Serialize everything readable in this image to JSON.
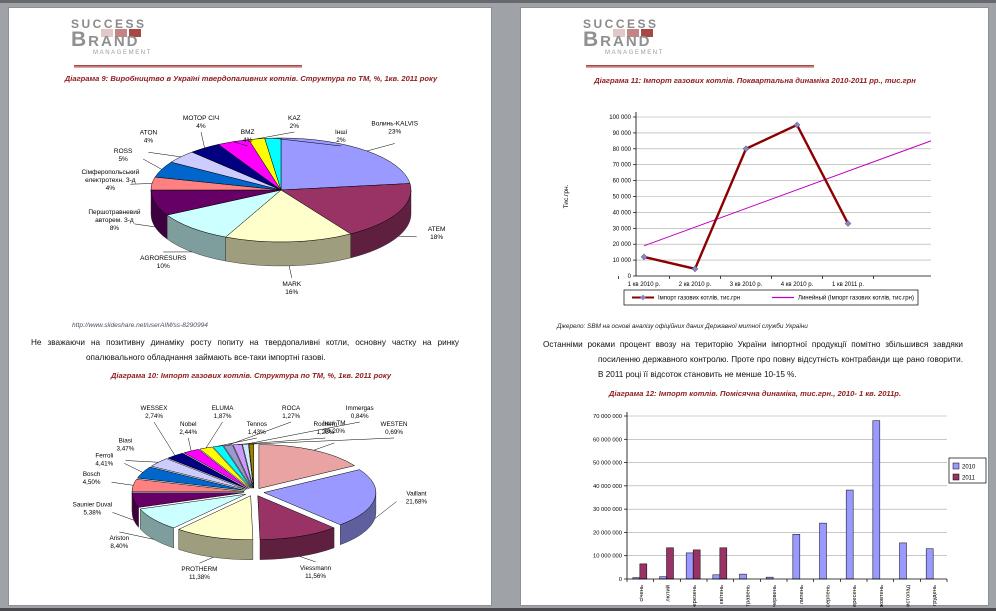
{
  "logo": {
    "success": "SUCCESS",
    "brand_initial": "B",
    "brand_rest": "RAND",
    "management": "MANAGEMENT"
  },
  "accent_color": "#8f1f22",
  "pages": {
    "left": {
      "title1": {
        "label": "Діаграма 9:",
        "rest": "Виробництво в Україні твердопаливних котлів. Структура по ТМ, %, 1кв. 2011 року"
      },
      "link": "http://www.slideshare.net/userAIM/ss-8290994",
      "paragraph": "Не зважаючи на позитивну динаміку росту попиту на твердопаливні котли, основну частку на ринку опалювального обладнання займають все-таки імпортні газові.",
      "title2": {
        "label": "Діаграма 10:",
        "rest": "Імпорт газових котлів. Структура по ТМ, %, 1кв. 2011 року"
      }
    },
    "right": {
      "title1": {
        "label": "Діаграма 11:",
        "rest": "Імпорт газових котлів. Поквартальна динаміка 2010-2011 рр., тис.грн"
      },
      "source": "Джерело: SBM на основі аналізу офіційних даних Державної митної служби України",
      "paragraph": "Останніми роками процент ввозу на територію України імпортної продукції помітно збільшився завдяки посиленню державного контролю. Проте про повну відсутність контрабанди ще рано говорити. В 2011 році її відсоток становить не менше 10-15 %.",
      "title2": {
        "label": "Діаграма 12:",
        "rest": "Імпорт котлів. Помісячна динаміка, тис.грн., 2010- 1 кв. 2011р."
      }
    }
  },
  "chart_data": [
    {
      "id": "pie-solid-fuel",
      "type": "pie",
      "title": "Виробництво в Україні твердопаливних котлів. Структура по ТМ, %, 1кв. 2011 року",
      "categories": [
        "Волинь-KALVIS",
        "ATEM",
        "MARK",
        "AGRORESURS",
        "Першотравневий авторем. З-д",
        "Сімферопольський електротехн. З-д",
        "ROSS",
        "ATON",
        "МОТОР СІЧ",
        "BMZ",
        "KAZ",
        "Інші"
      ],
      "values": [
        23,
        18,
        16,
        10,
        8,
        4,
        5,
        4,
        4,
        4,
        2,
        2
      ],
      "labels": [
        "23%",
        "18%",
        "16%",
        "10%",
        "8%",
        "4%",
        "5%",
        "4%",
        "4%",
        "4%",
        "2%",
        "2%"
      ],
      "colors": [
        "#9999FF",
        "#993366",
        "#FFFFCC",
        "#CCFFFF",
        "#660066",
        "#FF8080",
        "#0066CC",
        "#CCCCFF",
        "#000080",
        "#FF00FF",
        "#FFFF00",
        "#00FFFF"
      ],
      "legend_position": "none"
    },
    {
      "id": "pie-gas-import",
      "type": "pie",
      "title": "Імпорт газових котлів. Структура по ТМ, %, 1кв. 2011 року",
      "categories": [
        "Інші ТМ",
        "Vaillant",
        "Viessmann",
        "PROTHERM",
        "Ariston",
        "Saunier Duval",
        "Bosch",
        "Ferroli",
        "Biasi",
        "WESSEX",
        "Nobel",
        "ELUMA",
        "Tennos",
        "ROCA",
        "Rocterm",
        "Immergas",
        "WESTEN"
      ],
      "values": [
        16.2,
        21.68,
        11.56,
        11.38,
        8.4,
        5.38,
        4.5,
        4.41,
        3.47,
        2.74,
        2.44,
        1.87,
        1.43,
        1.27,
        1.25,
        0.84,
        0.69
      ],
      "labels": [
        "16,20%",
        "21,68%",
        "11,56%",
        "11,38%",
        "8,40%",
        "5,38%",
        "4,50%",
        "4,41%",
        "3,47%",
        "2,74%",
        "2,44%",
        "1,87%",
        "1,43%",
        "1,27%",
        "1,25%",
        "0,84%",
        "0,69%"
      ],
      "colors": [
        "#E9A3A3",
        "#9999FF",
        "#993366",
        "#FFFFCC",
        "#CCFFFF",
        "#660066",
        "#FF8080",
        "#0066CC",
        "#CCCCFF",
        "#000080",
        "#FF00FF",
        "#FFFF00",
        "#00FFFF",
        "#9999CC",
        "#CC99FF",
        "#CCECFF",
        "#A08000"
      ],
      "legend_position": "none"
    },
    {
      "id": "line-quarterly",
      "type": "line",
      "title": "Імпорт газових котлів. Поквартальна динаміка 2010-2011 рр., тис.грн",
      "categories": [
        "1 кв 2010 р.",
        "2 кв 2010 р.",
        "3 кв 2010 р.",
        "4 кв 2010 р.",
        "1 кв 2011 р."
      ],
      "series": [
        {
          "name": "Імпорт газових котлів, тис.грн",
          "values": [
            12000,
            4500,
            80000,
            95000,
            33000
          ],
          "color": "#8B0000"
        },
        {
          "name": "Линейный (Імпорт газових котлів, тис.грн)",
          "trend": [
            19000,
            85000
          ],
          "color": "#C000C0"
        }
      ],
      "ylabel": "Тис.грн.",
      "ylim": [
        0,
        100000
      ],
      "ytick": 10000,
      "grid": true,
      "legend_position": "bottom"
    },
    {
      "id": "bar-monthly",
      "type": "bar",
      "title": "Імпорт котлів. Помісячна динаміка, тис.грн., 2010- 1 кв. 2011р.",
      "categories": [
        "січень",
        "лютий",
        "березень",
        "квітень",
        "травень",
        "червень",
        "липень",
        "серпень",
        "вересень",
        "жовтень",
        "листопад",
        "грудень"
      ],
      "series": [
        {
          "name": "2010",
          "color": "#9999FF",
          "values": [
            600000,
            1000000,
            11200000,
            1800000,
            2100000,
            800000,
            19200000,
            24000000,
            38200000,
            68000000,
            15500000,
            13000000
          ]
        },
        {
          "name": "2011",
          "color": "#993366",
          "values": [
            6500000,
            13400000,
            12500000,
            13400000,
            0,
            0,
            0,
            0,
            0,
            0,
            0,
            0
          ]
        }
      ],
      "ylim": [
        0,
        70000000
      ],
      "ytick": 10000000,
      "grid": true,
      "legend_position": "right"
    }
  ]
}
